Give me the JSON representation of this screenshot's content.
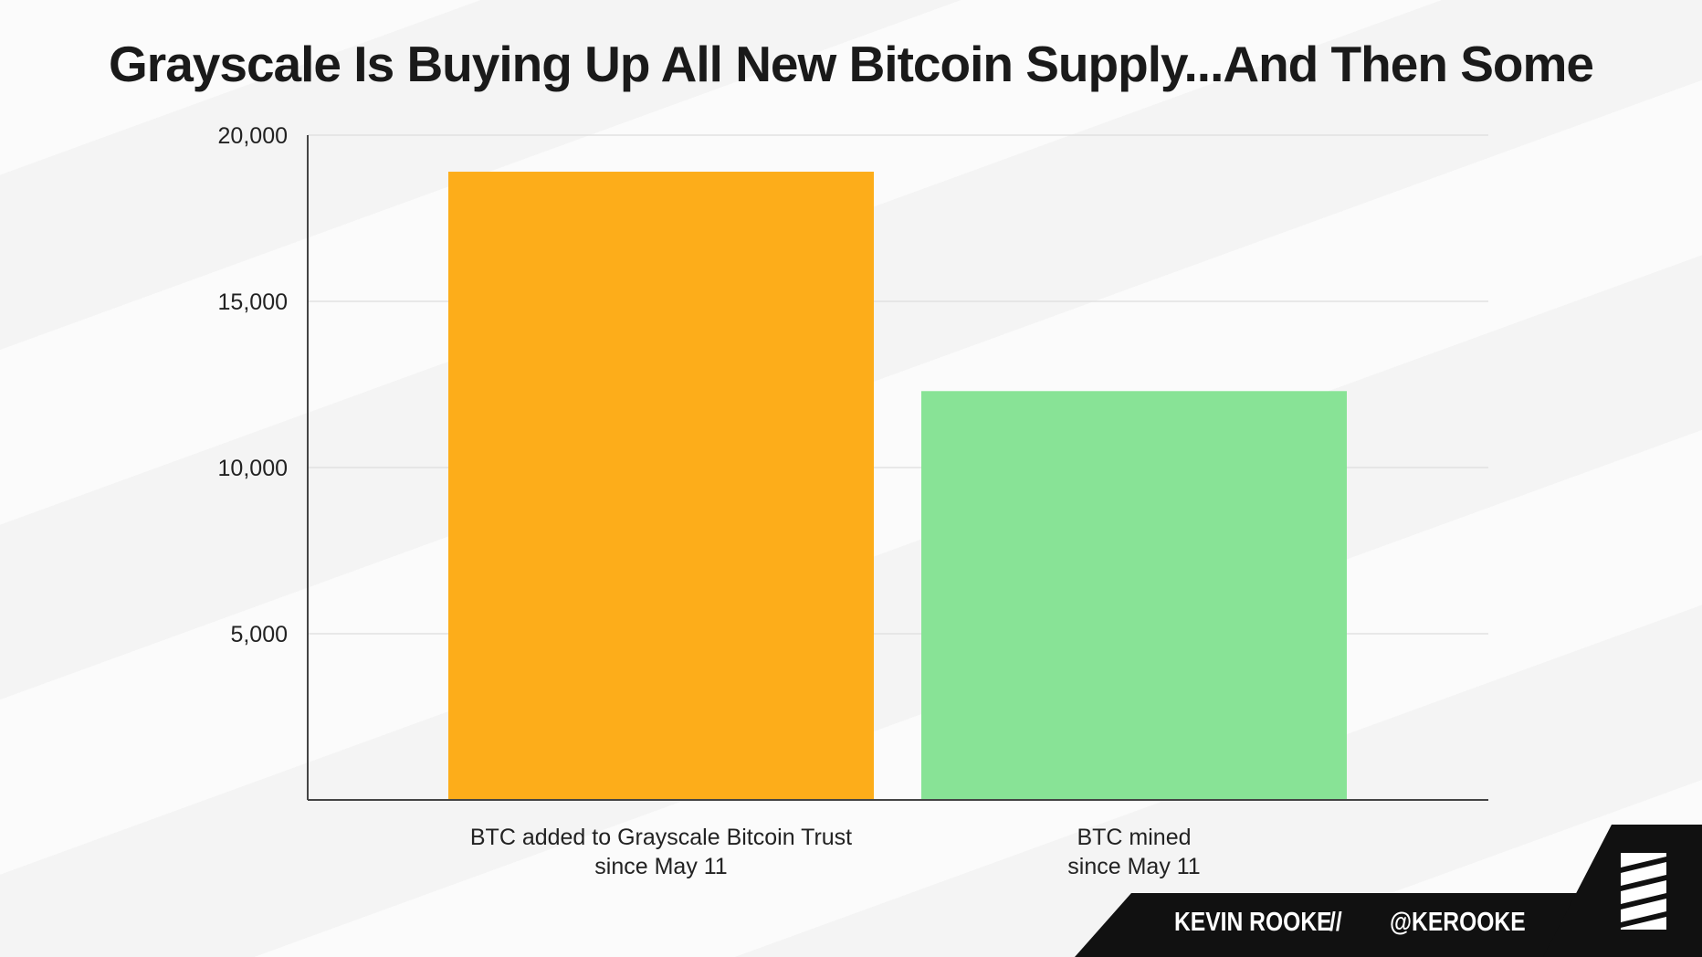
{
  "chart_data": {
    "type": "bar",
    "title": "Grayscale Is Buying Up All New Bitcoin Supply...And Then Some",
    "categories": [
      [
        "BTC added to Grayscale Bitcoin Trust",
        "since May 11"
      ],
      [
        "BTC mined",
        "since May 11"
      ]
    ],
    "values": [
      18900,
      12300
    ],
    "colors": [
      "#fdad1a",
      "#88e396"
    ],
    "ylim": [
      0,
      20000
    ],
    "yticks": [
      5000,
      10000,
      15000,
      20000
    ],
    "ytick_labels": [
      "5,000",
      "10,000",
      "15,000",
      "20,000"
    ],
    "grid": true,
    "xlabel": "",
    "ylabel": ""
  },
  "footer": {
    "author": "KEVIN ROOKE",
    "separator": "//",
    "handle": "@KEROOKE"
  },
  "logo": {
    "icon": "striped-square-logo-icon"
  }
}
